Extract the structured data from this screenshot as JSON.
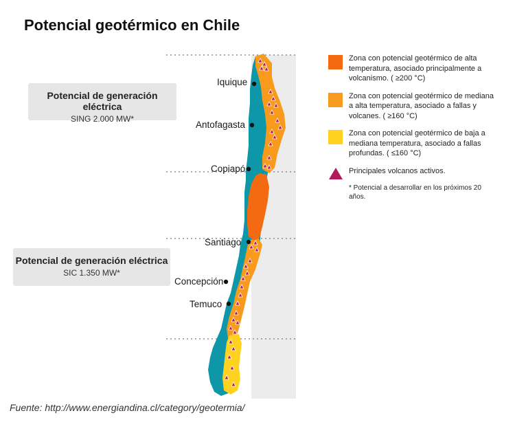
{
  "title": "Potencial geotérmico en Chile",
  "sing": {
    "title": "Potencial de generación eléctrica",
    "value": "SING 2.000 MW*"
  },
  "sic": {
    "title": "Potencial de generación eléctrica",
    "value": "SIC 1.350 MW*"
  },
  "cities": [
    "Iquique",
    "Antofagasta",
    "Copiapó",
    "Santiago",
    "Concepción",
    "Temuco"
  ],
  "legend": [
    {
      "text": "Zona con potencial geotérmico de alta temperatura, asociado principalmente a volcanismo. ( ≥200 °C)",
      "color": "#F36A10",
      "kind": "swatch"
    },
    {
      "text": "Zona con potencial geotérmico de mediana a alta temperatura, asociado a fallas y volcanes. ( ≥160 °C)",
      "color": "#F89B1C",
      "kind": "swatch"
    },
    {
      "text": "Zona con potencial geotérmico de baja a mediana temperatura, asociado a fallas profundas. ( ≤160 °C)",
      "color": "#FFD21F",
      "kind": "swatch"
    },
    {
      "text": "Principales volcanos activos.",
      "color": "#B4195B",
      "kind": "triangle"
    }
  ],
  "note": "* Potencial a desarrollar en los próximos 20 años.",
  "source": "Fuente: http://www.energiandina.cl/category/geotermia/",
  "colors": {
    "land": "#0E97A8",
    "panel": "#ECECEC",
    "volcano": "#B4195B"
  }
}
